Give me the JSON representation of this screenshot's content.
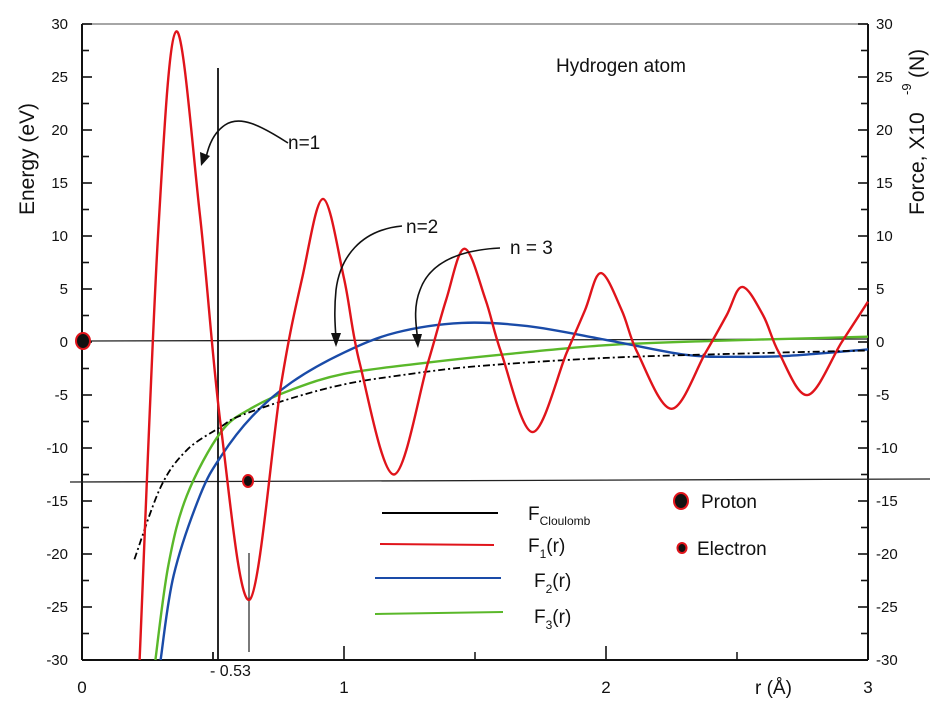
{
  "chart_data": {
    "type": "line",
    "title": "Hydrogen atom",
    "xlabel": "r (Å)",
    "ylabel": "Energy (eV)",
    "ylabel_right": "Force, X10 -9 (N)",
    "xlim": [
      0,
      3
    ],
    "ylim": [
      -30,
      30
    ],
    "ylim_right": [
      -30,
      30
    ],
    "x_ticks": [
      0,
      1,
      2,
      3
    ],
    "x_tick_labels": [
      "0",
      "1",
      "2",
      "3"
    ],
    "x_minor_ticks": [
      0.5,
      1.5,
      2.5
    ],
    "y_ticks": [
      30,
      25,
      20,
      15,
      10,
      5,
      0,
      -5,
      -10,
      -15,
      -20,
      -25,
      -30
    ],
    "y_tick_labels": [
      "30",
      "25",
      "20",
      "15",
      "10",
      "5",
      "0",
      "-5",
      "-10",
      "-15",
      "-20",
      "-25",
      "-30"
    ],
    "grid": false,
    "legend_position": "lower center",
    "reference_lines": [
      {
        "type": "vertical",
        "x": 0.53,
        "label": "- 0.53",
        "y_range": [
          -30,
          26
        ]
      },
      {
        "type": "horizontal",
        "y": 0
      },
      {
        "type": "horizontal",
        "y": -13.6
      },
      {
        "type": "vertical",
        "x": 0.64,
        "y_range": [
          -30,
          -20
        ]
      }
    ],
    "series": [
      {
        "name": "F_Cloulomb",
        "color": "#000000",
        "style": "dash-dot",
        "x": [
          0.2,
          0.3,
          0.4,
          0.53,
          0.6,
          0.8,
          1.0,
          1.2,
          1.5,
          2.0,
          2.5,
          3.0
        ],
        "y": [
          -20.5,
          -13.7,
          -10.2,
          -8.0,
          -7.0,
          -5.3,
          -4.0,
          -3.2,
          -2.3,
          -1.5,
          -1.1,
          -0.8
        ]
      },
      {
        "name": "F1(r)",
        "color": "#e0141b",
        "style": "solid",
        "x": [
          0.22,
          0.29,
          0.36,
          0.45,
          0.53,
          0.64,
          0.76,
          0.84,
          0.92,
          1.0,
          1.06,
          1.19,
          1.32,
          1.39,
          1.46,
          1.54,
          1.6,
          1.72,
          1.85,
          1.92,
          1.98,
          2.06,
          2.12,
          2.25,
          2.38,
          2.46,
          2.52,
          2.6,
          2.66,
          2.77,
          2.9,
          3.0
        ],
        "y": [
          -30,
          10,
          29.3,
          12,
          -8,
          -24.3,
          -4,
          6,
          13.5,
          6,
          -2,
          -12.5,
          -2,
          4,
          8.8,
          4,
          -1,
          -8.5,
          -1,
          3,
          6.5,
          3,
          -1,
          -6.3,
          -1,
          2.5,
          5.2,
          2.5,
          -1,
          -5,
          0,
          3.8
        ]
      },
      {
        "name": "F2(r)",
        "color": "#1a4ba8",
        "style": "solid",
        "x": [
          0.3,
          0.35,
          0.45,
          0.53,
          0.65,
          0.8,
          1.0,
          1.2,
          1.45,
          1.7,
          2.0,
          2.3,
          2.5,
          2.7,
          3.0
        ],
        "y": [
          -30,
          -22,
          -14.5,
          -10.8,
          -7,
          -3.8,
          -1.0,
          0.9,
          1.8,
          1.5,
          0.2,
          -1.2,
          -1.4,
          -1.3,
          -0.7
        ]
      },
      {
        "name": "F3(r)",
        "color": "#5ab82a",
        "style": "solid",
        "x": [
          0.28,
          0.33,
          0.4,
          0.53,
          0.65,
          0.8,
          1.0,
          1.3,
          1.6,
          2.0,
          2.4,
          2.7,
          3.0
        ],
        "y": [
          -30,
          -21,
          -14.5,
          -8.5,
          -6.2,
          -4.5,
          -3.0,
          -2.0,
          -1.2,
          -0.3,
          0.1,
          0.3,
          0.5
        ]
      }
    ],
    "markers": [
      {
        "name": "Proton",
        "x": 0,
        "y": 0
      },
      {
        "name": "Electron",
        "x": 0.64,
        "y": -13.6
      }
    ],
    "annotations": [
      {
        "text": "n=1",
        "arrow_to_x": 0.46,
        "arrow_to_y": 16
      },
      {
        "text": "n=2",
        "arrow_to_x": 0.97,
        "arrow_to_y": -0.5
      },
      {
        "text": "n = 3",
        "arrow_to_x": 1.3,
        "arrow_to_y": -1.5
      }
    ]
  },
  "labels": {
    "title": "Hydrogen atom",
    "ylabel_left": "Energy (eV)",
    "ylabel_right_main": "Force, X10",
    "ylabel_right_exp": "-9",
    "ylabel_right_unit": "(N)",
    "xlabel": "r (Å)",
    "x_special": "- 0.53",
    "n1": "n=1",
    "n2": "n=2",
    "n3": "n = 3"
  },
  "legend": {
    "items": [
      {
        "base": "F",
        "sub": "Cloulomb",
        "tail": "",
        "color": "#000000"
      },
      {
        "base": "F",
        "sub": "1",
        "tail": "(r)",
        "color": "#e0141b"
      },
      {
        "base": "F",
        "sub": "2",
        "tail": "(r)",
        "color": "#1a4ba8"
      },
      {
        "base": "F",
        "sub": "3",
        "tail": "(r)",
        "color": "#5ab82a"
      }
    ],
    "markers": [
      {
        "label": "Proton"
      },
      {
        "label": "Electron"
      }
    ]
  }
}
